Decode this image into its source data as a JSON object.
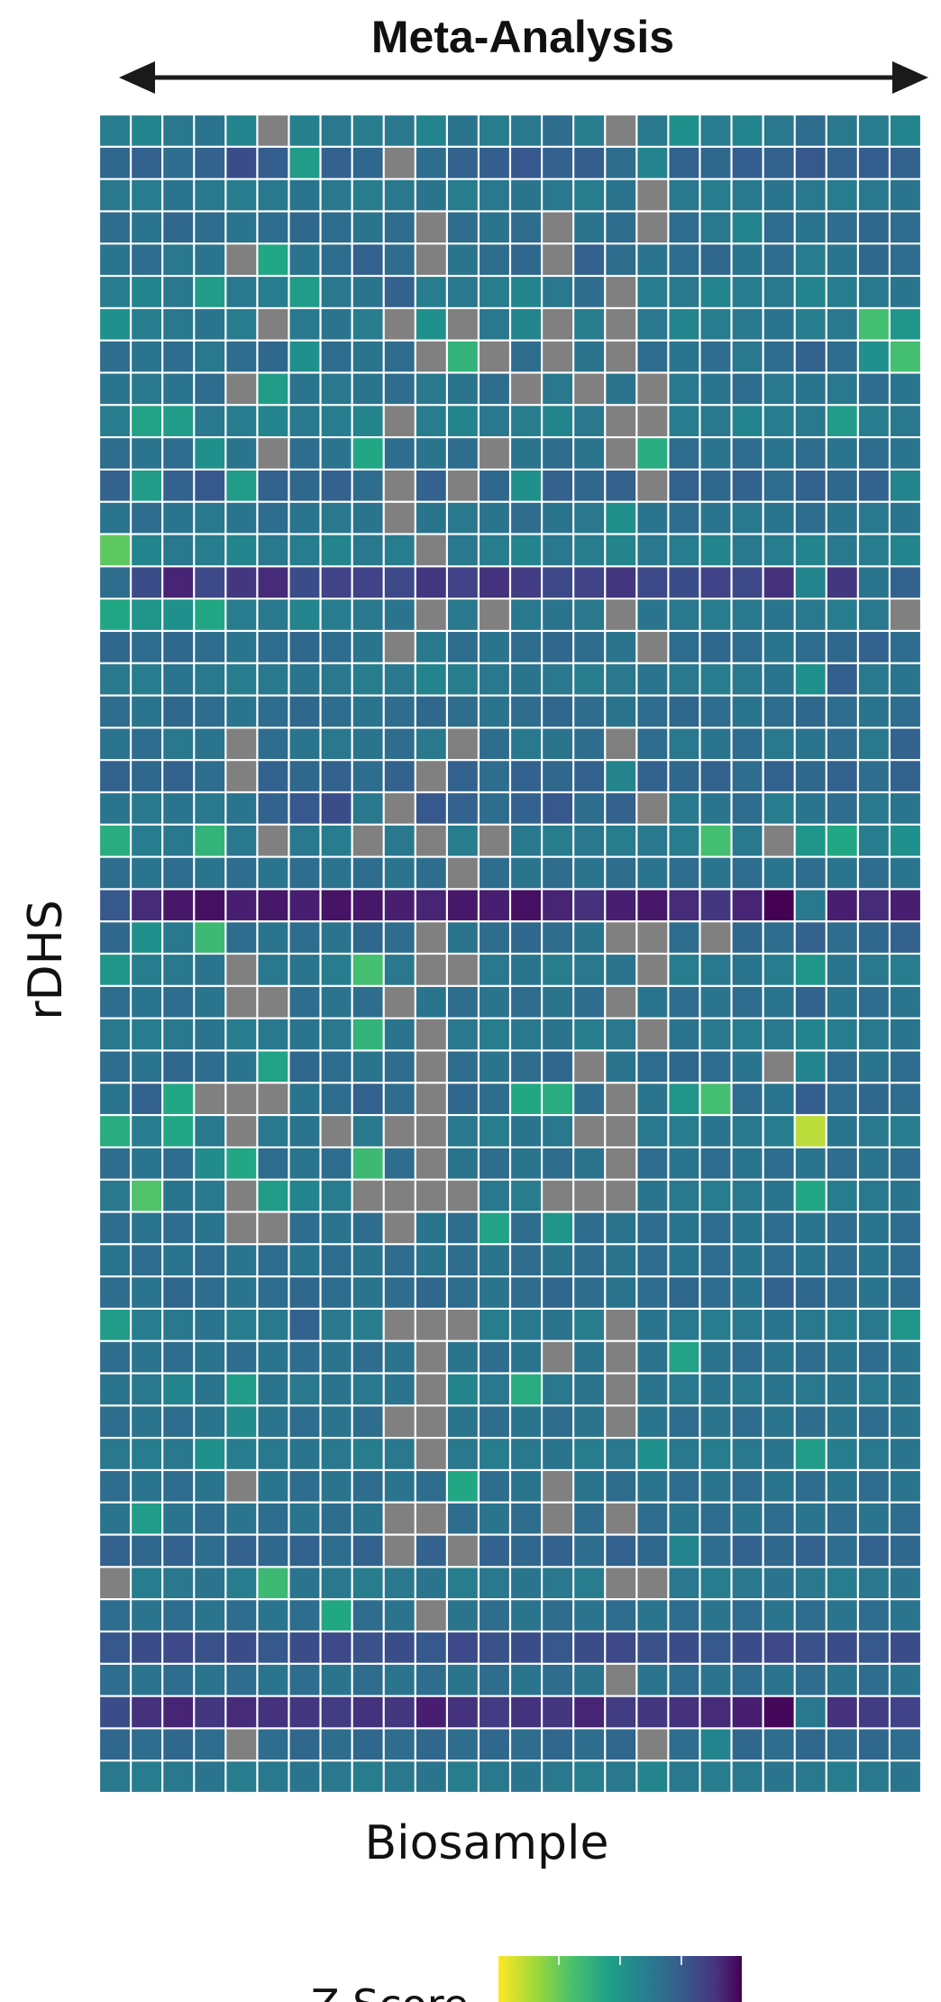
{
  "chart_data": {
    "type": "heatmap",
    "title": "Meta-Analysis",
    "xlabel": "Biosample",
    "ylabel": "rDHS",
    "legend": {
      "label": "Z Score",
      "placement": "bottom-center",
      "colormap": "viridis",
      "direction": "high-to-low"
    },
    "missing_color": "#808080",
    "grid_lines": "white",
    "n_cols": 26,
    "n_rows": 52,
    "note": "Cell values are estimated z-score level indices (0 = dark purple/low, 1 = yellow/high); null = missing (grey).",
    "rows": [
      [
        0.52,
        0.55,
        0.5,
        0.48,
        0.55,
        null,
        0.53,
        0.5,
        0.52,
        0.5,
        0.55,
        0.48,
        0.52,
        0.5,
        0.45,
        0.52,
        null,
        0.5,
        0.6,
        0.52,
        0.55,
        0.5,
        0.45,
        0.5,
        0.52,
        0.55
      ],
      [
        0.42,
        0.4,
        0.45,
        0.4,
        0.3,
        0.38,
        0.65,
        0.4,
        0.42,
        null,
        0.45,
        0.4,
        0.38,
        0.35,
        0.4,
        0.38,
        0.45,
        0.55,
        0.4,
        0.42,
        0.38,
        0.4,
        0.35,
        0.4,
        0.38,
        0.4
      ],
      [
        0.5,
        0.52,
        0.48,
        0.5,
        0.52,
        0.5,
        0.48,
        0.5,
        0.52,
        0.5,
        0.48,
        0.52,
        0.5,
        0.48,
        0.5,
        0.52,
        0.48,
        null,
        0.5,
        0.52,
        0.5,
        0.48,
        0.5,
        0.52,
        0.5,
        0.48
      ],
      [
        0.45,
        0.48,
        0.42,
        0.45,
        0.48,
        0.45,
        0.42,
        0.45,
        0.48,
        0.45,
        null,
        0.45,
        0.48,
        0.45,
        null,
        0.48,
        0.45,
        null,
        0.45,
        0.5,
        0.55,
        0.45,
        0.48,
        0.45,
        0.42,
        0.45
      ],
      [
        0.48,
        0.45,
        0.5,
        0.48,
        null,
        0.7,
        0.48,
        0.45,
        0.4,
        0.45,
        null,
        0.48,
        0.45,
        0.42,
        null,
        0.4,
        0.45,
        0.48,
        0.45,
        0.42,
        0.48,
        0.45,
        0.52,
        0.48,
        0.42,
        0.45
      ],
      [
        0.52,
        0.55,
        0.5,
        0.65,
        0.5,
        0.52,
        0.65,
        0.5,
        0.48,
        0.4,
        0.52,
        0.5,
        0.52,
        0.55,
        0.5,
        0.45,
        null,
        0.52,
        0.5,
        0.55,
        0.52,
        0.5,
        0.55,
        0.52,
        0.5,
        0.48
      ],
      [
        0.6,
        0.52,
        0.5,
        0.48,
        0.52,
        null,
        0.5,
        0.48,
        0.52,
        null,
        0.6,
        null,
        0.5,
        0.55,
        null,
        0.52,
        null,
        0.5,
        0.55,
        0.52,
        0.5,
        0.48,
        0.52,
        0.5,
        0.8,
        0.62
      ],
      [
        0.45,
        0.48,
        0.45,
        0.5,
        0.45,
        0.42,
        0.6,
        0.45,
        0.48,
        0.45,
        null,
        0.75,
        null,
        0.45,
        null,
        0.48,
        null,
        0.45,
        0.48,
        0.45,
        0.5,
        0.45,
        0.4,
        0.45,
        0.6,
        0.8
      ],
      [
        0.48,
        0.5,
        0.48,
        0.45,
        null,
        0.65,
        0.48,
        0.5,
        0.48,
        0.45,
        0.5,
        0.48,
        0.45,
        null,
        0.5,
        null,
        0.48,
        null,
        0.5,
        0.48,
        0.45,
        0.5,
        0.48,
        0.5,
        0.45,
        0.48
      ],
      [
        0.52,
        0.68,
        0.65,
        0.5,
        0.52,
        0.55,
        0.5,
        0.52,
        0.55,
        null,
        0.52,
        0.55,
        0.5,
        0.52,
        0.55,
        0.5,
        null,
        null,
        0.52,
        0.5,
        0.55,
        0.52,
        0.5,
        0.65,
        0.52,
        0.5
      ],
      [
        0.45,
        0.48,
        0.45,
        0.6,
        0.48,
        null,
        0.45,
        0.48,
        0.7,
        0.45,
        0.48,
        0.45,
        null,
        0.48,
        0.45,
        0.48,
        null,
        0.72,
        0.45,
        0.48,
        0.45,
        0.48,
        0.45,
        0.48,
        0.45,
        0.48
      ],
      [
        0.4,
        0.65,
        0.4,
        0.35,
        0.65,
        0.4,
        0.42,
        0.4,
        0.45,
        null,
        0.4,
        null,
        0.42,
        0.6,
        0.4,
        0.42,
        0.4,
        null,
        0.4,
        0.42,
        0.4,
        0.45,
        0.4,
        0.42,
        0.4,
        0.55
      ],
      [
        0.48,
        0.45,
        0.48,
        0.5,
        0.48,
        0.45,
        0.48,
        0.5,
        0.48,
        null,
        0.48,
        0.5,
        0.48,
        0.45,
        0.48,
        0.5,
        0.6,
        0.48,
        0.45,
        0.48,
        0.5,
        0.48,
        0.45,
        0.48,
        0.5,
        0.48
      ],
      [
        0.85,
        0.55,
        0.5,
        0.52,
        0.55,
        0.5,
        0.52,
        0.55,
        0.5,
        0.52,
        null,
        0.5,
        0.52,
        0.55,
        0.5,
        0.52,
        0.55,
        0.5,
        0.52,
        0.55,
        0.5,
        0.52,
        0.55,
        0.5,
        0.52,
        0.55
      ],
      [
        0.45,
        0.3,
        0.12,
        0.28,
        0.2,
        0.15,
        0.3,
        0.25,
        0.25,
        0.28,
        0.2,
        0.25,
        0.18,
        0.22,
        0.28,
        0.25,
        0.2,
        0.28,
        0.3,
        0.25,
        0.28,
        0.18,
        0.55,
        0.2,
        0.48,
        0.4
      ],
      [
        0.7,
        0.62,
        0.6,
        0.7,
        0.52,
        0.5,
        0.55,
        0.52,
        0.5,
        0.48,
        null,
        0.5,
        null,
        0.5,
        0.48,
        0.5,
        null,
        0.48,
        0.5,
        0.52,
        0.5,
        0.48,
        0.5,
        0.52,
        0.5,
        null
      ],
      [
        0.42,
        0.45,
        0.42,
        0.45,
        0.48,
        0.45,
        0.42,
        0.45,
        0.48,
        null,
        0.5,
        0.45,
        0.48,
        0.45,
        0.42,
        0.45,
        0.48,
        null,
        0.45,
        0.42,
        0.45,
        0.48,
        0.45,
        0.42,
        0.4,
        0.45
      ],
      [
        0.5,
        0.52,
        0.48,
        0.5,
        0.52,
        0.5,
        0.48,
        0.5,
        0.52,
        0.5,
        0.55,
        0.52,
        0.5,
        0.48,
        0.5,
        0.52,
        0.5,
        0.48,
        0.5,
        0.52,
        0.5,
        0.48,
        0.6,
        0.38,
        0.5,
        0.48
      ],
      [
        0.45,
        0.48,
        0.42,
        0.45,
        0.48,
        0.45,
        0.42,
        0.45,
        0.48,
        0.45,
        0.42,
        0.45,
        0.48,
        0.45,
        0.42,
        0.45,
        0.48,
        0.45,
        0.42,
        0.45,
        0.48,
        0.45,
        0.42,
        0.45,
        0.48,
        0.45
      ],
      [
        0.48,
        0.45,
        0.5,
        0.48,
        null,
        0.45,
        0.48,
        0.5,
        0.48,
        0.45,
        0.5,
        null,
        0.45,
        0.5,
        0.48,
        0.45,
        null,
        0.45,
        0.5,
        0.48,
        0.45,
        0.5,
        0.48,
        0.45,
        0.5,
        0.4
      ],
      [
        0.4,
        0.42,
        0.4,
        0.45,
        null,
        0.4,
        0.42,
        0.4,
        0.45,
        0.4,
        null,
        0.4,
        0.45,
        0.4,
        0.42,
        0.4,
        0.55,
        0.4,
        0.42,
        0.4,
        0.45,
        0.4,
        0.42,
        0.4,
        0.45,
        0.4
      ],
      [
        0.48,
        0.5,
        0.48,
        0.5,
        0.48,
        0.4,
        0.35,
        0.3,
        0.5,
        null,
        0.35,
        0.4,
        0.45,
        0.4,
        0.35,
        0.45,
        0.4,
        null,
        0.5,
        0.48,
        0.45,
        0.52,
        0.48,
        0.45,
        0.5,
        0.48
      ],
      [
        0.72,
        0.52,
        0.5,
        0.75,
        0.5,
        null,
        0.5,
        0.52,
        null,
        0.5,
        null,
        0.52,
        null,
        0.5,
        0.52,
        0.5,
        0.52,
        0.5,
        0.52,
        0.8,
        0.5,
        null,
        0.62,
        0.7,
        0.52,
        0.6
      ],
      [
        0.45,
        0.48,
        0.45,
        0.48,
        0.45,
        0.48,
        0.45,
        0.48,
        0.45,
        0.48,
        0.45,
        null,
        0.45,
        0.48,
        0.45,
        0.48,
        0.45,
        0.48,
        0.45,
        0.48,
        0.45,
        0.48,
        0.45,
        0.48,
        0.45,
        0.48
      ],
      [
        0.35,
        0.15,
        0.08,
        0.05,
        0.1,
        0.08,
        0.1,
        0.06,
        0.08,
        0.1,
        0.12,
        0.08,
        0.1,
        0.05,
        0.12,
        0.18,
        0.1,
        0.08,
        0.15,
        0.2,
        0.12,
        0.0,
        0.5,
        0.1,
        0.15,
        0.1
      ],
      [
        0.42,
        0.6,
        0.5,
        0.78,
        0.45,
        0.48,
        0.45,
        0.48,
        0.42,
        0.45,
        null,
        0.48,
        0.45,
        0.42,
        0.45,
        0.48,
        null,
        null,
        0.45,
        null,
        0.42,
        0.45,
        0.4,
        0.45,
        0.42,
        0.4
      ],
      [
        0.62,
        0.52,
        0.5,
        0.48,
        null,
        0.5,
        0.48,
        0.52,
        0.8,
        0.5,
        null,
        null,
        0.5,
        0.48,
        0.52,
        0.5,
        0.48,
        null,
        0.52,
        0.5,
        0.48,
        0.52,
        0.62,
        0.48,
        0.5,
        0.52
      ],
      [
        0.45,
        0.48,
        0.45,
        0.48,
        null,
        null,
        0.45,
        0.48,
        0.45,
        null,
        0.48,
        0.45,
        0.48,
        0.45,
        0.48,
        0.45,
        null,
        0.48,
        0.45,
        0.48,
        0.45,
        0.48,
        0.4,
        0.48,
        0.45,
        0.48
      ],
      [
        0.5,
        0.52,
        0.5,
        0.48,
        0.52,
        0.5,
        0.48,
        0.5,
        0.75,
        0.48,
        null,
        0.5,
        0.52,
        0.5,
        0.48,
        0.52,
        0.5,
        null,
        0.48,
        0.5,
        0.52,
        0.5,
        0.55,
        0.52,
        0.5,
        0.48
      ],
      [
        0.45,
        0.48,
        0.42,
        0.45,
        0.48,
        0.68,
        0.42,
        0.45,
        0.48,
        0.45,
        null,
        0.45,
        0.48,
        0.45,
        0.42,
        null,
        0.48,
        0.45,
        0.42,
        0.45,
        0.48,
        null,
        0.55,
        0.45,
        0.48,
        0.45
      ],
      [
        0.48,
        0.4,
        0.7,
        null,
        null,
        null,
        0.48,
        0.45,
        0.4,
        0.45,
        null,
        0.42,
        0.45,
        0.7,
        0.72,
        0.45,
        null,
        0.48,
        0.62,
        0.8,
        0.45,
        0.48,
        0.38,
        0.45,
        0.42,
        0.45
      ],
      [
        0.72,
        0.52,
        0.7,
        0.5,
        null,
        0.5,
        0.48,
        null,
        0.5,
        null,
        null,
        0.5,
        0.52,
        0.48,
        0.5,
        null,
        null,
        0.5,
        0.52,
        0.48,
        0.5,
        0.52,
        0.95,
        0.48,
        0.5,
        0.52
      ],
      [
        0.45,
        0.48,
        0.45,
        0.58,
        0.7,
        0.45,
        0.48,
        0.45,
        0.78,
        0.45,
        null,
        0.48,
        0.45,
        0.48,
        0.45,
        0.48,
        null,
        0.45,
        0.48,
        0.45,
        0.48,
        0.45,
        0.48,
        0.45,
        0.48,
        0.45
      ],
      [
        0.5,
        0.82,
        0.48,
        0.5,
        null,
        0.65,
        0.55,
        0.52,
        null,
        null,
        null,
        null,
        0.5,
        0.52,
        null,
        null,
        null,
        0.48,
        0.5,
        0.52,
        0.5,
        0.48,
        0.7,
        0.52,
        0.5,
        0.48
      ],
      [
        0.45,
        0.48,
        0.45,
        0.48,
        null,
        null,
        0.45,
        0.48,
        0.45,
        null,
        0.48,
        0.45,
        0.68,
        0.45,
        0.62,
        0.45,
        0.48,
        0.45,
        0.48,
        0.45,
        0.48,
        0.45,
        0.48,
        0.45,
        0.48,
        0.45
      ],
      [
        0.48,
        0.45,
        0.48,
        0.45,
        0.48,
        0.45,
        0.48,
        0.45,
        0.48,
        0.45,
        0.48,
        0.45,
        0.48,
        0.45,
        0.48,
        0.45,
        0.48,
        0.45,
        0.48,
        0.45,
        0.48,
        0.45,
        0.48,
        0.45,
        0.48,
        0.45
      ],
      [
        0.45,
        0.48,
        0.42,
        0.45,
        0.48,
        0.45,
        0.42,
        0.45,
        0.48,
        0.45,
        0.42,
        0.45,
        0.48,
        0.45,
        0.42,
        0.45,
        0.48,
        0.45,
        0.42,
        0.45,
        0.48,
        0.4,
        0.42,
        0.45,
        0.48,
        0.45
      ],
      [
        0.65,
        0.52,
        0.5,
        0.48,
        0.52,
        0.5,
        0.4,
        0.5,
        0.52,
        null,
        null,
        null,
        0.52,
        0.5,
        0.48,
        0.52,
        null,
        0.48,
        0.5,
        0.52,
        0.5,
        0.48,
        0.5,
        0.52,
        0.5,
        0.62
      ],
      [
        0.45,
        0.48,
        0.45,
        0.48,
        0.45,
        0.48,
        0.45,
        0.48,
        0.45,
        0.48,
        null,
        0.48,
        0.45,
        0.48,
        null,
        0.48,
        null,
        0.48,
        0.68,
        0.48,
        0.45,
        0.48,
        0.45,
        0.48,
        0.45,
        0.48
      ],
      [
        0.48,
        0.5,
        0.55,
        0.48,
        0.65,
        0.48,
        0.5,
        0.48,
        0.5,
        0.48,
        null,
        0.55,
        0.5,
        0.72,
        0.5,
        0.48,
        null,
        0.48,
        0.5,
        0.48,
        0.5,
        0.48,
        0.5,
        0.48,
        0.5,
        0.48
      ],
      [
        0.45,
        0.48,
        0.45,
        0.48,
        0.58,
        0.48,
        0.45,
        0.48,
        0.45,
        null,
        null,
        0.48,
        0.45,
        0.48,
        0.45,
        0.48,
        null,
        0.48,
        0.45,
        0.48,
        0.45,
        0.48,
        0.45,
        0.48,
        0.45,
        0.48
      ],
      [
        0.5,
        0.52,
        0.5,
        0.6,
        0.52,
        0.5,
        0.48,
        0.5,
        0.52,
        0.5,
        null,
        0.5,
        0.52,
        0.5,
        0.48,
        0.52,
        0.5,
        0.6,
        0.5,
        0.52,
        0.5,
        0.48,
        0.65,
        0.52,
        0.5,
        0.48
      ],
      [
        0.45,
        0.48,
        0.45,
        0.48,
        null,
        0.48,
        0.45,
        0.48,
        0.45,
        0.48,
        0.45,
        0.7,
        0.45,
        0.48,
        null,
        0.48,
        0.45,
        0.48,
        0.45,
        0.48,
        0.45,
        0.48,
        0.45,
        0.48,
        0.45,
        0.48
      ],
      [
        0.48,
        0.65,
        0.48,
        0.45,
        0.48,
        0.45,
        0.48,
        0.45,
        0.48,
        null,
        null,
        0.45,
        0.48,
        0.45,
        null,
        0.45,
        null,
        0.45,
        0.48,
        0.45,
        0.48,
        0.45,
        0.48,
        0.45,
        0.48,
        0.45
      ],
      [
        0.4,
        0.42,
        0.4,
        0.45,
        0.4,
        0.42,
        0.4,
        0.45,
        0.4,
        null,
        0.4,
        null,
        0.4,
        0.42,
        0.4,
        0.45,
        0.4,
        0.42,
        0.55,
        0.45,
        0.4,
        0.42,
        0.4,
        0.45,
        0.4,
        0.42
      ],
      [
        null,
        0.52,
        0.5,
        0.48,
        0.52,
        0.78,
        0.48,
        0.5,
        0.52,
        0.5,
        0.48,
        0.52,
        0.5,
        0.48,
        0.5,
        0.52,
        null,
        null,
        0.5,
        0.52,
        0.5,
        0.48,
        0.5,
        0.52,
        0.5,
        0.48
      ],
      [
        0.45,
        0.48,
        0.45,
        0.48,
        0.45,
        0.48,
        0.45,
        0.7,
        0.45,
        0.48,
        null,
        0.48,
        0.45,
        0.48,
        0.45,
        0.48,
        0.45,
        0.48,
        0.45,
        0.48,
        0.45,
        0.48,
        0.45,
        0.48,
        0.45,
        0.48
      ],
      [
        0.35,
        0.3,
        0.28,
        0.32,
        0.3,
        0.35,
        0.3,
        0.28,
        0.32,
        0.3,
        0.35,
        0.28,
        0.32,
        0.3,
        0.35,
        0.3,
        0.28,
        0.32,
        0.3,
        0.35,
        0.3,
        0.28,
        0.32,
        0.3,
        0.35,
        0.3
      ],
      [
        0.45,
        0.48,
        0.45,
        0.48,
        0.45,
        0.48,
        0.45,
        0.48,
        0.45,
        0.48,
        0.45,
        0.48,
        0.45,
        0.48,
        0.45,
        0.48,
        null,
        0.48,
        0.45,
        0.48,
        0.45,
        0.48,
        0.45,
        0.48,
        0.45,
        0.48
      ],
      [
        0.3,
        0.18,
        0.12,
        0.2,
        0.15,
        0.18,
        0.2,
        0.22,
        0.18,
        0.2,
        0.1,
        0.18,
        0.22,
        0.18,
        0.2,
        0.12,
        0.22,
        0.2,
        0.18,
        0.15,
        0.1,
        0.02,
        0.5,
        0.18,
        0.22,
        0.25
      ],
      [
        0.42,
        0.45,
        0.42,
        0.45,
        null,
        0.45,
        0.42,
        0.45,
        0.42,
        0.45,
        0.42,
        0.45,
        0.42,
        0.45,
        0.42,
        0.45,
        0.42,
        null,
        0.45,
        0.55,
        0.42,
        0.45,
        0.42,
        0.45,
        0.42,
        0.45
      ],
      [
        0.5,
        0.52,
        0.5,
        0.48,
        0.52,
        0.5,
        0.48,
        0.5,
        0.52,
        0.5,
        0.48,
        0.52,
        0.5,
        0.48,
        0.5,
        0.52,
        0.5,
        0.55,
        0.5,
        0.52,
        0.5,
        0.48,
        0.5,
        0.52,
        0.5,
        0.48
      ]
    ]
  }
}
